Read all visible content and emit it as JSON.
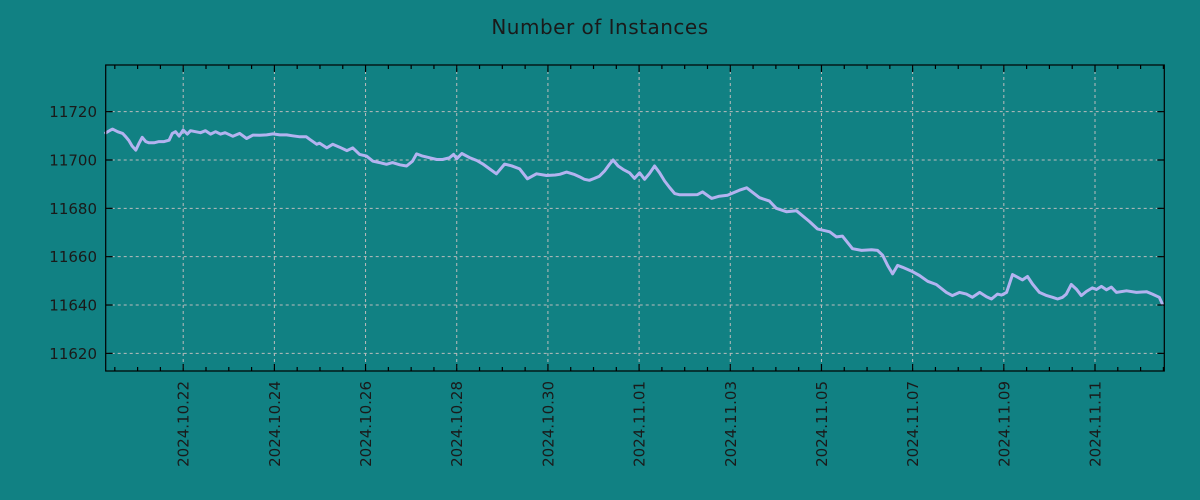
{
  "colors": {
    "background": "#118183",
    "line": "#b3b3f0",
    "grid": "#bcbcbc",
    "axis": "#000000",
    "text": "#1a1a1a"
  },
  "chart_data": {
    "type": "line",
    "title": "Number of Instances",
    "xlabel": "",
    "ylabel": "",
    "grid": true,
    "legend": false,
    "y_axis": {
      "tick_values": [
        11620,
        11640,
        11660,
        11680,
        11700,
        11720
      ],
      "tick_labels": [
        "11620",
        "11640",
        "11660",
        "11680",
        "11700",
        "11720"
      ],
      "range": [
        11612.7,
        11739.3
      ]
    },
    "x_axis": {
      "tick_labels": [
        "2024.10.22",
        "2024.10.24",
        "2024.10.26",
        "2024.10.28",
        "2024.10.30",
        "2024.11.01",
        "2024.11.03",
        "2024.11.05",
        "2024.11.07",
        "2024.11.09",
        "2024.11.11"
      ],
      "tick_positions_days": [
        1.7,
        3.7,
        5.7,
        7.7,
        9.7,
        11.7,
        13.7,
        15.7,
        17.7,
        19.7,
        21.7
      ],
      "minor_tick_interval_days": 0.5,
      "range_days": [
        0,
        23.22
      ]
    },
    "series": [
      {
        "name": "instances",
        "points": [
          [
            0.0,
            11711.2
          ],
          [
            0.09,
            11712.2
          ],
          [
            0.15,
            11712.8
          ],
          [
            0.26,
            11711.7
          ],
          [
            0.37,
            11711.0
          ],
          [
            0.44,
            11709.6
          ],
          [
            0.51,
            11708.0
          ],
          [
            0.58,
            11705.8
          ],
          [
            0.66,
            11704.1
          ],
          [
            0.73,
            11706.9
          ],
          [
            0.8,
            11709.4
          ],
          [
            0.88,
            11707.6
          ],
          [
            0.95,
            11707.1
          ],
          [
            1.06,
            11707.1
          ],
          [
            1.17,
            11707.6
          ],
          [
            1.28,
            11707.6
          ],
          [
            1.39,
            11708.2
          ],
          [
            1.46,
            11711.0
          ],
          [
            1.53,
            11711.7
          ],
          [
            1.61,
            11709.9
          ],
          [
            1.7,
            11712.4
          ],
          [
            1.79,
            11710.7
          ],
          [
            1.86,
            11712.1
          ],
          [
            1.97,
            11711.7
          ],
          [
            2.08,
            11711.3
          ],
          [
            2.19,
            11712.1
          ],
          [
            2.3,
            11710.7
          ],
          [
            2.41,
            11711.7
          ],
          [
            2.52,
            11710.7
          ],
          [
            2.62,
            11711.3
          ],
          [
            2.79,
            11709.8
          ],
          [
            2.94,
            11711.0
          ],
          [
            3.09,
            11708.9
          ],
          [
            3.23,
            11710.3
          ],
          [
            3.38,
            11710.2
          ],
          [
            3.53,
            11710.4
          ],
          [
            3.67,
            11710.8
          ],
          [
            3.82,
            11710.4
          ],
          [
            3.97,
            11710.4
          ],
          [
            4.1,
            11710.0
          ],
          [
            4.26,
            11709.6
          ],
          [
            4.4,
            11709.6
          ],
          [
            4.47,
            11708.6
          ],
          [
            4.63,
            11706.5
          ],
          [
            4.69,
            11707.0
          ],
          [
            4.85,
            11705.0
          ],
          [
            4.98,
            11706.5
          ],
          [
            5.13,
            11705.3
          ],
          [
            5.29,
            11703.9
          ],
          [
            5.42,
            11705.0
          ],
          [
            5.57,
            11702.3
          ],
          [
            5.72,
            11701.6
          ],
          [
            5.86,
            11699.5
          ],
          [
            6.01,
            11698.9
          ],
          [
            6.16,
            11698.2
          ],
          [
            6.29,
            11698.9
          ],
          [
            6.45,
            11698.0
          ],
          [
            6.6,
            11697.5
          ],
          [
            6.73,
            11699.5
          ],
          [
            6.82,
            11702.5
          ],
          [
            6.95,
            11701.6
          ],
          [
            7.11,
            11700.9
          ],
          [
            7.26,
            11700.2
          ],
          [
            7.39,
            11700.2
          ],
          [
            7.54,
            11700.9
          ],
          [
            7.63,
            11702.3
          ],
          [
            7.7,
            11700.5
          ],
          [
            7.81,
            11702.7
          ],
          [
            7.98,
            11701.0
          ],
          [
            8.14,
            11699.8
          ],
          [
            8.27,
            11698.4
          ],
          [
            8.42,
            11696.3
          ],
          [
            8.57,
            11694.3
          ],
          [
            8.75,
            11698.3
          ],
          [
            8.9,
            11697.6
          ],
          [
            9.08,
            11696.3
          ],
          [
            9.25,
            11692.2
          ],
          [
            9.45,
            11694.3
          ],
          [
            9.67,
            11693.6
          ],
          [
            9.86,
            11693.8
          ],
          [
            9.96,
            11694.1
          ],
          [
            10.11,
            11695.0
          ],
          [
            10.27,
            11694.1
          ],
          [
            10.39,
            11693.1
          ],
          [
            10.5,
            11692.0
          ],
          [
            10.61,
            11691.6
          ],
          [
            10.72,
            11692.4
          ],
          [
            10.83,
            11693.3
          ],
          [
            10.94,
            11695.4
          ],
          [
            11.05,
            11698.2
          ],
          [
            11.13,
            11700.0
          ],
          [
            11.24,
            11697.5
          ],
          [
            11.35,
            11696.1
          ],
          [
            11.49,
            11694.7
          ],
          [
            11.6,
            11692.4
          ],
          [
            11.71,
            11694.7
          ],
          [
            11.82,
            11692.0
          ],
          [
            11.93,
            11694.5
          ],
          [
            12.04,
            11697.5
          ],
          [
            12.15,
            11694.7
          ],
          [
            12.26,
            11691.3
          ],
          [
            12.37,
            11688.6
          ],
          [
            12.48,
            11686.1
          ],
          [
            12.59,
            11685.6
          ],
          [
            12.81,
            11685.6
          ],
          [
            12.98,
            11685.7
          ],
          [
            13.09,
            11686.8
          ],
          [
            13.29,
            11684.1
          ],
          [
            13.46,
            11685.0
          ],
          [
            13.64,
            11685.4
          ],
          [
            13.9,
            11687.5
          ],
          [
            14.06,
            11688.5
          ],
          [
            14.34,
            11684.4
          ],
          [
            14.56,
            11683.0
          ],
          [
            14.71,
            11680.0
          ],
          [
            14.93,
            11678.6
          ],
          [
            15.15,
            11679.0
          ],
          [
            15.44,
            11674.5
          ],
          [
            15.61,
            11671.5
          ],
          [
            15.88,
            11670.3
          ],
          [
            16.03,
            11668.2
          ],
          [
            16.16,
            11668.5
          ],
          [
            16.38,
            11663.3
          ],
          [
            16.58,
            11662.6
          ],
          [
            16.8,
            11662.9
          ],
          [
            16.93,
            11662.6
          ],
          [
            17.04,
            11660.6
          ],
          [
            17.15,
            11656.4
          ],
          [
            17.26,
            11652.9
          ],
          [
            17.37,
            11656.4
          ],
          [
            17.48,
            11655.6
          ],
          [
            17.68,
            11654.0
          ],
          [
            17.85,
            11652.2
          ],
          [
            18.03,
            11649.8
          ],
          [
            18.22,
            11648.5
          ],
          [
            18.44,
            11645.2
          ],
          [
            18.57,
            11643.9
          ],
          [
            18.73,
            11645.2
          ],
          [
            18.88,
            11644.5
          ],
          [
            19.01,
            11643.2
          ],
          [
            19.17,
            11645.2
          ],
          [
            19.32,
            11643.4
          ],
          [
            19.43,
            11642.5
          ],
          [
            19.56,
            11644.5
          ],
          [
            19.65,
            11644.1
          ],
          [
            19.76,
            11645.2
          ],
          [
            19.89,
            11652.6
          ],
          [
            20.0,
            11651.5
          ],
          [
            20.11,
            11650.4
          ],
          [
            20.22,
            11651.8
          ],
          [
            20.33,
            11648.7
          ],
          [
            20.48,
            11645.2
          ],
          [
            20.64,
            11643.9
          ],
          [
            20.77,
            11643.2
          ],
          [
            20.88,
            11642.5
          ],
          [
            20.99,
            11643.2
          ],
          [
            21.07,
            11644.5
          ],
          [
            21.18,
            11648.5
          ],
          [
            21.29,
            11646.6
          ],
          [
            21.4,
            11643.9
          ],
          [
            21.51,
            11645.6
          ],
          [
            21.64,
            11647.1
          ],
          [
            21.73,
            11646.4
          ],
          [
            21.84,
            11647.7
          ],
          [
            21.95,
            11646.3
          ],
          [
            22.06,
            11647.4
          ],
          [
            22.17,
            11645.2
          ],
          [
            22.39,
            11645.9
          ],
          [
            22.61,
            11645.2
          ],
          [
            22.83,
            11645.5
          ],
          [
            22.96,
            11644.5
          ],
          [
            23.11,
            11643.2
          ],
          [
            23.18,
            11640.3
          ]
        ]
      }
    ]
  }
}
